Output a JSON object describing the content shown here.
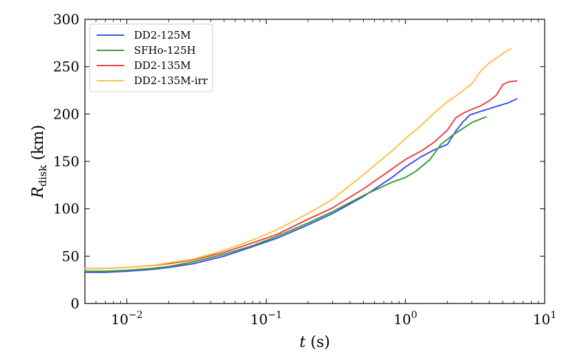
{
  "chart_data": {
    "type": "line",
    "title": "",
    "xlabel": {
      "italic": "t",
      "rest": " (s)"
    },
    "ylabel": {
      "italic": "R",
      "subscript": "disk",
      "rest": " (km)"
    },
    "xscale": "log",
    "xlim": [
      0.005,
      10
    ],
    "ylim": [
      0,
      300
    ],
    "grid": false,
    "legend_position": "top-left",
    "x_ticks": [
      {
        "value": 0.01,
        "base": "10",
        "exp": "−2"
      },
      {
        "value": 0.1,
        "base": "10",
        "exp": "−1"
      },
      {
        "value": 1,
        "base": "10",
        "exp": "0"
      },
      {
        "value": 10,
        "base": "10",
        "exp": "1"
      }
    ],
    "y_ticks": [
      {
        "value": 0,
        "label": "0"
      },
      {
        "value": 50,
        "label": "50"
      },
      {
        "value": 100,
        "label": "100"
      },
      {
        "value": 150,
        "label": "150"
      },
      {
        "value": 200,
        "label": "200"
      },
      {
        "value": 250,
        "label": "250"
      },
      {
        "value": 300,
        "label": "300"
      }
    ],
    "series": [
      {
        "name": "DD2-125M",
        "color": "#3b4ff0",
        "x": [
          0.005,
          0.007,
          0.01,
          0.015,
          0.02,
          0.03,
          0.05,
          0.08,
          0.12,
          0.2,
          0.3,
          0.5,
          0.8,
          1.0,
          1.3,
          1.6,
          2.0,
          2.3,
          2.6,
          2.9,
          3.5,
          4.5,
          5.5,
          6.3
        ],
        "y": [
          33,
          33,
          34,
          36,
          38,
          42,
          50,
          60,
          69,
          83,
          95,
          113,
          133,
          144,
          155,
          162,
          168,
          182,
          192,
          199,
          203,
          208,
          212,
          216
        ]
      },
      {
        "name": "SFHo-125H",
        "color": "#3a9a3a",
        "x": [
          0.005,
          0.007,
          0.01,
          0.015,
          0.02,
          0.03,
          0.05,
          0.08,
          0.12,
          0.2,
          0.3,
          0.5,
          0.8,
          1.0,
          1.2,
          1.5,
          1.8,
          2.2,
          2.6,
          3.0,
          3.5,
          3.8
        ],
        "y": [
          34,
          34,
          35,
          37,
          39,
          44,
          52,
          61,
          71,
          85,
          97,
          114,
          128,
          133,
          140,
          152,
          168,
          178,
          185,
          191,
          195,
          197
        ]
      },
      {
        "name": "DD2-135M",
        "color": "#ee4444",
        "x": [
          0.005,
          0.007,
          0.01,
          0.015,
          0.02,
          0.03,
          0.05,
          0.08,
          0.12,
          0.2,
          0.3,
          0.5,
          0.8,
          1.0,
          1.3,
          1.6,
          2.0,
          2.3,
          2.6,
          3.0,
          3.5,
          4.0,
          4.5,
          5.0,
          5.5,
          6.3
        ],
        "y": [
          37,
          37,
          38,
          40,
          42,
          46,
          54,
          64,
          73,
          89,
          101,
          121,
          142,
          152,
          161,
          170,
          183,
          196,
          201,
          205,
          209,
          214,
          220,
          231,
          234,
          235
        ]
      },
      {
        "name": "DD2-135M-irr",
        "color": "#ffc04a",
        "x": [
          0.005,
          0.007,
          0.01,
          0.015,
          0.02,
          0.03,
          0.05,
          0.08,
          0.12,
          0.2,
          0.3,
          0.5,
          0.8,
          1.0,
          1.3,
          1.6,
          2.0,
          2.3,
          2.6,
          3.0,
          3.5,
          4.0,
          4.5,
          5.0,
          5.7
        ],
        "y": [
          37,
          37,
          38,
          40,
          43,
          47,
          56,
          67,
          78,
          95,
          110,
          136,
          161,
          174,
          188,
          201,
          213,
          219,
          225,
          232,
          246,
          254,
          259,
          264,
          269
        ]
      }
    ]
  }
}
